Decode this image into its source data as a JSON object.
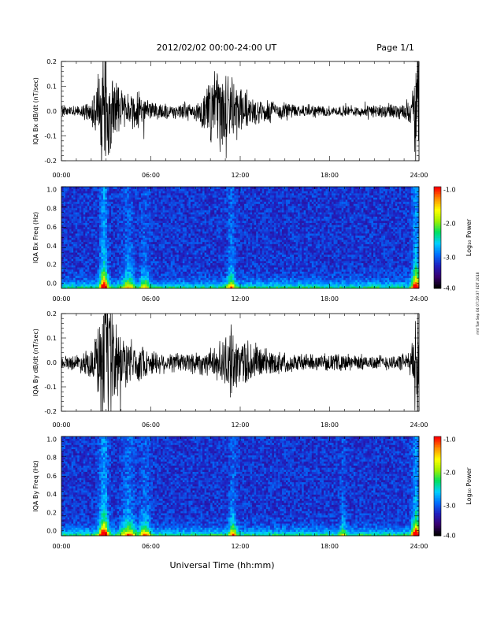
{
  "header": {
    "title": "2012/02/02  00:00-24:00 UT",
    "page": "Page 1/1"
  },
  "footer": {
    "xlabel": "Universal Time (hh:mm)",
    "side_note": "rmt Tue Sep 04 07:29:37 EDT 2018"
  },
  "colorbar": {
    "label": "Log₁₀ Power",
    "ticks": [
      "-1.0",
      "-2.0",
      "-3.0",
      "-4.0"
    ],
    "range": [
      -4.0,
      -1.0
    ],
    "colors": [
      "#000000",
      "#3a0070",
      "#2020c0",
      "#0070ff",
      "#00d0ff",
      "#00e060",
      "#a0f000",
      "#ffff00",
      "#ff9000",
      "#ff0000"
    ]
  },
  "chart_data": [
    {
      "type": "line",
      "ylabel": "IQA Bx dB/dt (nT/sec)",
      "xlim": [
        0,
        24
      ],
      "ylim": [
        -0.2,
        0.2
      ],
      "x_ticks": [
        "00:00",
        "06:00",
        "12:00",
        "18:00",
        "24:00"
      ],
      "y_ticks": [
        "0.2",
        "0.1",
        "0.0",
        "-0.1",
        "-0.2"
      ],
      "envelope": {
        "hours": [
          0,
          1,
          2,
          2.4,
          2.7,
          3.0,
          3.3,
          3.6,
          4.0,
          4.5,
          5.0,
          5.5,
          6.0,
          7,
          8,
          9,
          9.5,
          10.0,
          10.5,
          11.0,
          11.3,
          11.6,
          12.0,
          12.5,
          13,
          14,
          15,
          16,
          17,
          18,
          19,
          20,
          21,
          22,
          23,
          23.5,
          23.8,
          24
        ],
        "amplitude": [
          0.02,
          0.02,
          0.04,
          0.12,
          0.25,
          0.25,
          0.2,
          0.15,
          0.1,
          0.06,
          0.08,
          0.05,
          0.04,
          0.03,
          0.03,
          0.04,
          0.06,
          0.12,
          0.16,
          0.2,
          0.18,
          0.14,
          0.1,
          0.08,
          0.06,
          0.045,
          0.035,
          0.025,
          0.025,
          0.02,
          0.02,
          0.02,
          0.025,
          0.03,
          0.03,
          0.05,
          0.25,
          0.25
        ]
      }
    },
    {
      "type": "heatmap",
      "ylabel": "IQA Bx Freq (Hz)",
      "xlim": [
        0,
        24
      ],
      "ylim": [
        0,
        1.0
      ],
      "x_ticks": [
        "00:00",
        "06:00",
        "12:00",
        "18:00",
        "24:00"
      ],
      "y_ticks": [
        "1.0",
        "0.8",
        "0.6",
        "0.4",
        "0.2",
        "0.0"
      ],
      "zlim": [
        -4.0,
        -1.0
      ],
      "bursts": [
        {
          "hour": 2.85,
          "width": 0.25,
          "strength": 1.0
        },
        {
          "hour": 4.5,
          "width": 0.4,
          "strength": 0.45
        },
        {
          "hour": 5.6,
          "width": 0.3,
          "strength": 0.4
        },
        {
          "hour": 11.4,
          "width": 0.25,
          "strength": 0.55
        },
        {
          "hour": 23.8,
          "width": 0.25,
          "strength": 1.0
        }
      ]
    },
    {
      "type": "line",
      "ylabel": "IQA By dB/dt (nT/sec)",
      "xlim": [
        0,
        24
      ],
      "ylim": [
        -0.2,
        0.2
      ],
      "x_ticks": [
        "00:00",
        "06:00",
        "12:00",
        "18:00",
        "24:00"
      ],
      "y_ticks": [
        "0.2",
        "0.1",
        "0.0",
        "-0.1",
        "-0.2"
      ],
      "envelope": {
        "hours": [
          0,
          1,
          2,
          2.5,
          2.8,
          3.0,
          3.3,
          3.6,
          4.0,
          4.5,
          5.0,
          5.5,
          6.0,
          7,
          8,
          9,
          10,
          11.0,
          11.3,
          11.6,
          12.0,
          12.5,
          13.0,
          13.5,
          14,
          15,
          16,
          17,
          18,
          19,
          20,
          21,
          22,
          23,
          23.5,
          23.8,
          24
        ],
        "amplitude": [
          0.025,
          0.03,
          0.06,
          0.15,
          0.25,
          0.25,
          0.22,
          0.18,
          0.12,
          0.08,
          0.09,
          0.06,
          0.05,
          0.04,
          0.04,
          0.05,
          0.05,
          0.1,
          0.14,
          0.11,
          0.09,
          0.1,
          0.08,
          0.06,
          0.05,
          0.04,
          0.035,
          0.03,
          0.03,
          0.035,
          0.03,
          0.03,
          0.03,
          0.035,
          0.05,
          0.25,
          0.25
        ]
      }
    },
    {
      "type": "heatmap",
      "ylabel": "IQA By Freq (Hz)",
      "xlim": [
        0,
        24
      ],
      "ylim": [
        0,
        1.0
      ],
      "x_ticks": [
        "00:00",
        "06:00",
        "12:00",
        "18:00",
        "24:00"
      ],
      "y_ticks": [
        "1.0",
        "0.8",
        "0.6",
        "0.4",
        "0.2",
        "0.0"
      ],
      "zlim": [
        -4.0,
        -1.0
      ],
      "bursts": [
        {
          "hour": 2.85,
          "width": 0.3,
          "strength": 1.0
        },
        {
          "hour": 4.5,
          "width": 0.45,
          "strength": 0.55
        },
        {
          "hour": 5.6,
          "width": 0.35,
          "strength": 0.5
        },
        {
          "hour": 11.5,
          "width": 0.25,
          "strength": 0.55
        },
        {
          "hour": 18.9,
          "width": 0.2,
          "strength": 0.3
        },
        {
          "hour": 23.8,
          "width": 0.25,
          "strength": 1.0
        }
      ]
    }
  ]
}
